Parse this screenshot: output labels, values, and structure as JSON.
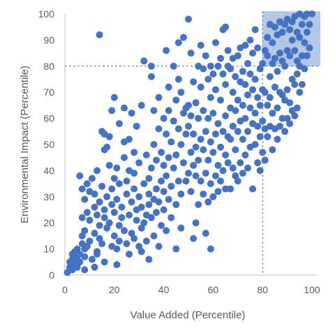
{
  "chart_data": {
    "type": "scatter",
    "xlabel": "Value Added (Percentile)",
    "ylabel": "Environmental Impact (Percentile)",
    "xlim": [
      0,
      100
    ],
    "ylim": [
      0,
      100
    ],
    "xticks": [
      "0",
      "20",
      "40",
      "60",
      "80",
      "100"
    ],
    "yticks": [
      "0",
      "10",
      "20",
      "30",
      "40",
      "50",
      "60",
      "70",
      "80",
      "90",
      "100"
    ],
    "grid": false,
    "reference_lines": {
      "x": 80,
      "y": 80
    },
    "highlight_region": {
      "x": [
        80,
        100
      ],
      "y": [
        80,
        100
      ]
    },
    "colors": {
      "points": "#4472C4",
      "highlight": "#B4C7E7",
      "reference_line": "#4472C4",
      "axis": "#BFBFBF",
      "text": "#595959"
    },
    "points": [
      [
        1,
        1
      ],
      [
        2,
        3
      ],
      [
        2,
        5
      ],
      [
        3,
        2
      ],
      [
        3,
        6
      ],
      [
        3,
        8
      ],
      [
        4,
        4
      ],
      [
        4,
        7
      ],
      [
        4,
        9
      ],
      [
        5,
        3
      ],
      [
        5,
        6
      ],
      [
        5,
        10
      ],
      [
        6,
        5
      ],
      [
        6,
        8
      ],
      [
        6,
        38
      ],
      [
        7,
        12
      ],
      [
        7,
        15
      ],
      [
        7,
        22
      ],
      [
        7,
        33
      ],
      [
        8,
        2
      ],
      [
        8,
        7
      ],
      [
        8,
        10
      ],
      [
        8,
        17
      ],
      [
        8,
        29
      ],
      [
        9,
        11
      ],
      [
        9,
        24
      ],
      [
        9,
        35
      ],
      [
        10,
        13
      ],
      [
        10,
        21
      ],
      [
        10,
        32
      ],
      [
        11,
        37
      ],
      [
        11,
        6
      ],
      [
        12,
        3
      ],
      [
        12,
        16
      ],
      [
        12,
        26
      ],
      [
        12,
        31
      ],
      [
        13,
        9
      ],
      [
        13,
        23
      ],
      [
        13,
        40
      ],
      [
        13,
        8
      ],
      [
        14,
        14
      ],
      [
        14,
        19
      ],
      [
        14,
        28
      ],
      [
        14,
        92
      ],
      [
        15,
        34
      ],
      [
        15,
        55
      ],
      [
        15,
        12
      ],
      [
        16,
        5
      ],
      [
        16,
        22
      ],
      [
        16,
        25
      ],
      [
        16,
        54
      ],
      [
        16,
        48
      ],
      [
        17,
        18
      ],
      [
        17,
        30
      ],
      [
        17,
        49
      ],
      [
        18,
        20
      ],
      [
        18,
        42
      ],
      [
        18,
        53
      ],
      [
        19,
        11
      ],
      [
        19,
        27
      ],
      [
        19,
        33
      ],
      [
        19,
        63
      ],
      [
        20,
        15
      ],
      [
        20,
        24
      ],
      [
        20,
        37
      ],
      [
        20,
        68
      ],
      [
        21,
        4
      ],
      [
        21,
        10
      ],
      [
        21,
        29
      ],
      [
        21,
        41
      ],
      [
        22,
        13
      ],
      [
        22,
        19
      ],
      [
        22,
        35
      ],
      [
        22,
        58
      ],
      [
        23,
        26
      ],
      [
        23,
        22
      ],
      [
        24,
        17
      ],
      [
        24,
        45
      ],
      [
        24,
        51
      ],
      [
        24,
        64
      ],
      [
        25,
        31
      ],
      [
        25,
        12
      ],
      [
        25,
        36
      ],
      [
        26,
        8
      ],
      [
        26,
        23
      ],
      [
        26,
        40
      ],
      [
        26,
        52
      ],
      [
        27,
        16
      ],
      [
        27,
        28
      ],
      [
        27,
        62
      ],
      [
        28,
        14
      ],
      [
        28,
        33
      ],
      [
        28,
        39
      ],
      [
        28,
        47
      ],
      [
        29,
        21
      ],
      [
        29,
        25
      ],
      [
        29,
        57
      ],
      [
        30,
        11
      ],
      [
        30,
        30
      ],
      [
        30,
        43
      ],
      [
        31,
        9
      ],
      [
        31,
        18
      ],
      [
        31,
        26
      ],
      [
        31,
        65
      ],
      [
        32,
        20
      ],
      [
        32,
        35
      ],
      [
        32,
        82
      ],
      [
        33,
        13
      ],
      [
        33,
        23
      ],
      [
        33,
        46
      ],
      [
        34,
        27
      ],
      [
        34,
        31
      ],
      [
        34,
        37
      ],
      [
        34,
        6
      ],
      [
        35,
        22
      ],
      [
        35,
        41
      ],
      [
        35,
        76
      ],
      [
        35,
        80
      ],
      [
        36,
        15
      ],
      [
        36,
        29
      ],
      [
        36,
        50
      ],
      [
        36,
        63
      ],
      [
        37,
        24
      ],
      [
        37,
        33
      ],
      [
        37,
        44
      ],
      [
        38,
        11
      ],
      [
        38,
        28
      ],
      [
        38,
        56
      ],
      [
        38,
        68
      ],
      [
        39,
        19
      ],
      [
        39,
        36
      ],
      [
        39,
        47
      ],
      [
        40,
        25
      ],
      [
        40,
        32
      ],
      [
        40,
        42
      ],
      [
        40,
        60
      ],
      [
        41,
        17
      ],
      [
        41,
        38
      ],
      [
        41,
        54
      ],
      [
        41,
        86
      ],
      [
        42,
        29
      ],
      [
        42,
        45
      ],
      [
        42,
        63
      ],
      [
        42,
        72
      ],
      [
        43,
        22
      ],
      [
        43,
        34
      ],
      [
        43,
        51
      ],
      [
        44,
        41
      ],
      [
        44,
        59
      ],
      [
        44,
        80
      ],
      [
        45,
        10
      ],
      [
        45,
        27
      ],
      [
        45,
        46
      ],
      [
        45,
        67
      ],
      [
        46,
        36
      ],
      [
        46,
        56
      ],
      [
        46,
        75
      ],
      [
        46,
        89
      ],
      [
        47,
        18
      ],
      [
        47,
        31
      ],
      [
        47,
        50
      ],
      [
        47,
        70
      ],
      [
        48,
        43
      ],
      [
        48,
        62
      ],
      [
        48,
        91
      ],
      [
        49,
        36
      ],
      [
        49,
        54
      ],
      [
        49,
        64
      ],
      [
        50,
        39
      ],
      [
        50,
        57
      ],
      [
        50,
        65
      ],
      [
        50,
        98
      ],
      [
        51,
        32
      ],
      [
        51,
        47
      ],
      [
        51,
        61
      ],
      [
        51,
        85
      ],
      [
        52,
        14
      ],
      [
        52,
        42
      ],
      [
        52,
        54
      ],
      [
        52,
        74
      ],
      [
        53,
        20
      ],
      [
        53,
        38
      ],
      [
        53,
        49
      ],
      [
        53,
        66
      ],
      [
        54,
        27
      ],
      [
        54,
        44
      ],
      [
        54,
        60
      ],
      [
        54,
        80
      ],
      [
        55,
        36
      ],
      [
        55,
        52
      ],
      [
        55,
        72
      ],
      [
        55,
        88
      ],
      [
        56,
        31
      ],
      [
        56,
        48
      ],
      [
        56,
        63
      ],
      [
        56,
        79
      ],
      [
        57,
        16
      ],
      [
        57,
        39
      ],
      [
        57,
        55
      ],
      [
        57,
        84
      ],
      [
        58,
        28
      ],
      [
        58,
        44
      ],
      [
        58,
        60
      ],
      [
        58,
        75
      ],
      [
        59,
        10
      ],
      [
        59,
        35
      ],
      [
        59,
        51
      ],
      [
        59,
        68
      ],
      [
        59,
        80
      ],
      [
        60,
        30
      ],
      [
        60,
        47
      ],
      [
        60,
        62
      ],
      [
        60,
        77
      ],
      [
        61,
        38
      ],
      [
        61,
        54
      ],
      [
        61,
        71
      ],
      [
        61,
        89
      ],
      [
        62,
        32
      ],
      [
        62,
        42
      ],
      [
        62,
        58
      ],
      [
        62,
        80
      ],
      [
        63,
        36
      ],
      [
        63,
        49
      ],
      [
        63,
        67
      ],
      [
        63,
        83
      ],
      [
        64,
        40
      ],
      [
        64,
        55
      ],
      [
        64,
        77
      ],
      [
        64,
        94
      ],
      [
        65,
        33
      ],
      [
        65,
        46
      ],
      [
        65,
        61
      ],
      [
        65,
        73
      ],
      [
        65,
        95
      ],
      [
        66,
        43
      ],
      [
        66,
        53
      ],
      [
        66,
        80
      ],
      [
        66,
        86
      ],
      [
        67,
        33
      ],
      [
        67,
        52
      ],
      [
        67,
        64
      ],
      [
        67,
        79
      ],
      [
        68,
        41
      ],
      [
        68,
        57
      ],
      [
        68,
        70
      ],
      [
        68,
        83
      ],
      [
        69,
        38
      ],
      [
        69,
        48
      ],
      [
        69,
        63
      ],
      [
        69,
        76
      ],
      [
        70,
        36
      ],
      [
        70,
        55
      ],
      [
        70,
        67
      ],
      [
        70,
        84
      ],
      [
        71,
        43
      ],
      [
        71,
        59
      ],
      [
        71,
        74
      ],
      [
        71,
        87
      ],
      [
        72,
        39
      ],
      [
        72,
        52
      ],
      [
        72,
        65
      ],
      [
        72,
        78
      ],
      [
        73,
        46
      ],
      [
        73,
        60
      ],
      [
        73,
        73
      ],
      [
        73,
        88
      ],
      [
        74,
        41
      ],
      [
        74,
        55
      ],
      [
        74,
        69
      ],
      [
        74,
        81
      ],
      [
        75,
        49
      ],
      [
        75,
        64
      ],
      [
        75,
        77
      ],
      [
        75,
        90
      ],
      [
        76,
        33
      ],
      [
        76,
        58
      ],
      [
        76,
        71
      ],
      [
        76,
        85
      ],
      [
        77,
        50
      ],
      [
        77,
        62
      ],
      [
        77,
        75
      ],
      [
        77,
        94
      ],
      [
        78,
        43
      ],
      [
        78,
        57
      ],
      [
        78,
        68
      ],
      [
        78,
        87
      ],
      [
        79,
        40
      ],
      [
        79,
        53
      ],
      [
        79,
        65
      ],
      [
        79,
        79
      ],
      [
        80,
        47
      ],
      [
        80,
        59
      ],
      [
        80,
        71
      ],
      [
        80,
        81
      ],
      [
        81,
        44
      ],
      [
        81,
        56
      ],
      [
        81,
        70
      ],
      [
        81,
        86
      ],
      [
        82,
        53
      ],
      [
        82,
        65
      ],
      [
        82,
        84
      ],
      [
        82,
        91
      ],
      [
        83,
        57
      ],
      [
        83,
        68
      ],
      [
        83,
        76
      ],
      [
        83,
        96
      ],
      [
        84,
        48
      ],
      [
        84,
        62
      ],
      [
        84,
        81
      ],
      [
        84,
        89
      ],
      [
        85,
        56
      ],
      [
        85,
        72
      ],
      [
        85,
        83
      ],
      [
        85,
        95
      ],
      [
        86,
        52
      ],
      [
        86,
        64
      ],
      [
        86,
        78
      ],
      [
        86,
        92
      ],
      [
        87,
        57
      ],
      [
        87,
        70
      ],
      [
        87,
        85
      ],
      [
        87,
        97
      ],
      [
        88,
        60
      ],
      [
        88,
        69
      ],
      [
        88,
        82
      ],
      [
        88,
        93
      ],
      [
        89,
        55
      ],
      [
        89,
        67
      ],
      [
        89,
        80
      ],
      [
        89,
        96
      ],
      [
        90,
        60
      ],
      [
        90,
        71
      ],
      [
        90,
        86
      ],
      [
        90,
        98
      ],
      [
        91,
        58
      ],
      [
        91,
        66
      ],
      [
        91,
        84
      ],
      [
        91,
        94
      ],
      [
        92,
        63
      ],
      [
        92,
        75
      ],
      [
        92,
        90
      ],
      [
        92,
        97
      ],
      [
        93,
        61
      ],
      [
        93,
        73
      ],
      [
        93,
        86
      ],
      [
        93,
        99
      ],
      [
        94,
        64
      ],
      [
        94,
        77
      ],
      [
        94,
        82
      ],
      [
        94,
        93
      ],
      [
        95,
        70
      ],
      [
        95,
        80
      ],
      [
        95,
        91
      ],
      [
        95,
        100
      ],
      [
        96,
        73
      ],
      [
        96,
        84
      ],
      [
        96,
        96
      ],
      [
        97,
        79
      ],
      [
        97,
        89
      ],
      [
        97,
        99
      ],
      [
        98,
        84
      ],
      [
        98,
        93
      ],
      [
        98,
        100
      ],
      [
        99,
        87
      ],
      [
        99,
        96
      ],
      [
        100,
        100
      ]
    ]
  }
}
